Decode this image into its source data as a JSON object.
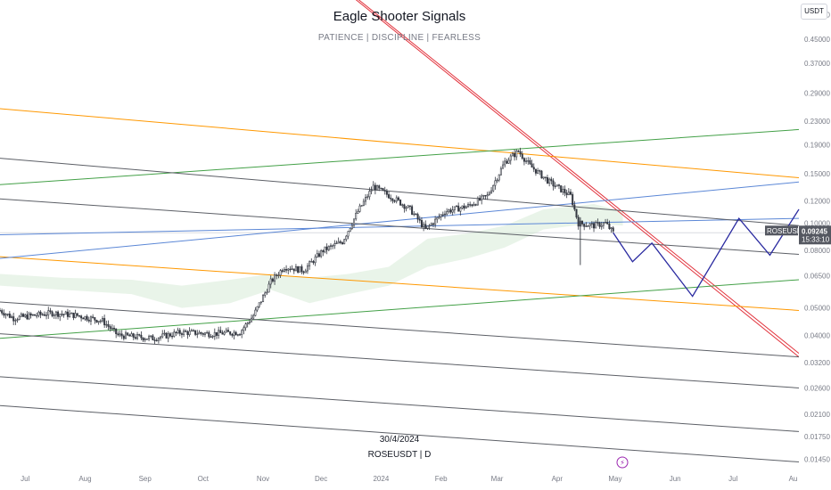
{
  "chart_data": {
    "type": "candlestick",
    "title": "Eagle Shooter Signals",
    "subtitle": "PATIENCE  |  DISCIPLINE  |  FEARLESS",
    "watermark_date": "30/4/2024",
    "watermark_symbol": "ROSEUSDT  |  D",
    "currency": "USDT",
    "symbol": "ROSEUSDT",
    "last_price": "0.09245",
    "countdown": "15:33:10",
    "y_scale": "log",
    "ylim": [
      0.0125,
      0.62
    ],
    "yticks": [
      "0.55000",
      "0.45000",
      "0.37000",
      "0.29000",
      "0.23000",
      "0.19000",
      "0.15000",
      "0.12000",
      "0.10000",
      "0.08000",
      "0.06500",
      "0.05000",
      "0.04000",
      "0.03200",
      "0.02600",
      "0.02100",
      "0.01750",
      "0.01450"
    ],
    "x_range": [
      "2023-06-18",
      "2024-08-04"
    ],
    "xticks": [
      {
        "label": "Jul",
        "date": "2023-07-01"
      },
      {
        "label": "Aug",
        "date": "2023-08-01"
      },
      {
        "label": "Sep",
        "date": "2023-09-01"
      },
      {
        "label": "Oct",
        "date": "2023-10-01"
      },
      {
        "label": "Nov",
        "date": "2023-11-01"
      },
      {
        "label": "Dec",
        "date": "2023-12-01"
      },
      {
        "label": "2024",
        "date": "2024-01-01"
      },
      {
        "label": "Feb",
        "date": "2024-02-01"
      },
      {
        "label": "Mar",
        "date": "2024-03-01"
      },
      {
        "label": "Apr",
        "date": "2024-04-01"
      },
      {
        "label": "May",
        "date": "2024-05-01"
      },
      {
        "label": "Jun",
        "date": "2024-06-01"
      },
      {
        "label": "Jul",
        "date": "2024-07-01"
      },
      {
        "label": "Au",
        "date": "2024-08-01"
      }
    ],
    "price_path": [
      {
        "date": "2023-06-18",
        "value": 0.049
      },
      {
        "date": "2023-06-25",
        "value": 0.046
      },
      {
        "date": "2023-07-05",
        "value": 0.047
      },
      {
        "date": "2023-07-15",
        "value": 0.048
      },
      {
        "date": "2023-07-28",
        "value": 0.047
      },
      {
        "date": "2023-08-10",
        "value": 0.045
      },
      {
        "date": "2023-08-18",
        "value": 0.04
      },
      {
        "date": "2023-09-05",
        "value": 0.039
      },
      {
        "date": "2023-09-20",
        "value": 0.041
      },
      {
        "date": "2023-10-05",
        "value": 0.0405
      },
      {
        "date": "2023-10-20",
        "value": 0.041
      },
      {
        "date": "2023-10-27",
        "value": 0.047
      },
      {
        "date": "2023-11-05",
        "value": 0.062
      },
      {
        "date": "2023-11-12",
        "value": 0.07
      },
      {
        "date": "2023-11-22",
        "value": 0.068
      },
      {
        "date": "2023-12-02",
        "value": 0.08
      },
      {
        "date": "2023-12-12",
        "value": 0.086
      },
      {
        "date": "2023-12-20",
        "value": 0.11
      },
      {
        "date": "2023-12-28",
        "value": 0.135
      },
      {
        "date": "2024-01-08",
        "value": 0.122
      },
      {
        "date": "2024-01-16",
        "value": 0.112
      },
      {
        "date": "2024-01-24",
        "value": 0.095
      },
      {
        "date": "2024-02-03",
        "value": 0.11
      },
      {
        "date": "2024-02-15",
        "value": 0.115
      },
      {
        "date": "2024-02-25",
        "value": 0.125
      },
      {
        "date": "2024-03-05",
        "value": 0.165
      },
      {
        "date": "2024-03-12",
        "value": 0.18
      },
      {
        "date": "2024-03-18",
        "value": 0.16
      },
      {
        "date": "2024-03-28",
        "value": 0.14
      },
      {
        "date": "2024-04-08",
        "value": 0.125
      },
      {
        "date": "2024-04-12",
        "value": 0.1
      },
      {
        "date": "2024-04-20",
        "value": 0.098
      },
      {
        "date": "2024-04-26",
        "value": 0.1
      },
      {
        "date": "2024-04-30",
        "value": 0.0925
      }
    ],
    "projection": [
      {
        "date": "2024-04-30",
        "value": 0.0925
      },
      {
        "date": "2024-05-10",
        "value": 0.073
      },
      {
        "date": "2024-05-20",
        "value": 0.085
      },
      {
        "date": "2024-06-10",
        "value": 0.055
      },
      {
        "date": "2024-07-04",
        "value": 0.104
      },
      {
        "date": "2024-07-20",
        "value": 0.077
      },
      {
        "date": "2024-08-04",
        "value": 0.112
      }
    ],
    "trend_lines": [
      {
        "color": "#e2333d",
        "points": [
          {
            "date": "2023-11-20",
            "value": 0.9
          },
          {
            "date": "2024-08-04",
            "value": 0.0335
          }
        ]
      },
      {
        "color": "#e2333d",
        "points": [
          {
            "date": "2023-11-23",
            "value": 0.88
          },
          {
            "date": "2024-08-04",
            "value": 0.0345
          }
        ]
      },
      {
        "color": "#ff9800",
        "points": [
          {
            "date": "2023-06-18",
            "value": 0.255
          },
          {
            "date": "2024-08-04",
            "value": 0.145
          }
        ]
      },
      {
        "color": "#ff9800",
        "points": [
          {
            "date": "2023-06-18",
            "value": 0.076
          },
          {
            "date": "2024-08-04",
            "value": 0.049
          }
        ]
      },
      {
        "color": "#43a047",
        "points": [
          {
            "date": "2023-06-18",
            "value": 0.137
          },
          {
            "date": "2024-08-04",
            "value": 0.215
          }
        ]
      },
      {
        "color": "#43a047",
        "points": [
          {
            "date": "2023-06-18",
            "value": 0.039
          },
          {
            "date": "2024-08-04",
            "value": 0.063
          }
        ]
      },
      {
        "color": "#5b87d6",
        "points": [
          {
            "date": "2023-06-18",
            "value": 0.075
          },
          {
            "date": "2024-08-04",
            "value": 0.14
          }
        ]
      },
      {
        "color": "#5b87d6",
        "points": [
          {
            "date": "2023-06-18",
            "value": 0.091
          },
          {
            "date": "2024-08-04",
            "value": 0.104
          }
        ]
      },
      {
        "color": "#5c5f66",
        "points": [
          {
            "date": "2023-06-18",
            "value": 0.17
          },
          {
            "date": "2024-08-04",
            "value": 0.098
          }
        ]
      },
      {
        "color": "#5c5f66",
        "points": [
          {
            "date": "2023-06-18",
            "value": 0.122
          },
          {
            "date": "2024-08-04",
            "value": 0.0775
          }
        ]
      },
      {
        "color": "#5c5f66",
        "points": [
          {
            "date": "2023-06-18",
            "value": 0.0525
          },
          {
            "date": "2024-08-04",
            "value": 0.0335
          }
        ]
      },
      {
        "color": "#5c5f66",
        "points": [
          {
            "date": "2023-06-18",
            "value": 0.0405
          },
          {
            "date": "2024-08-04",
            "value": 0.026
          }
        ]
      },
      {
        "color": "#5c5f66",
        "points": [
          {
            "date": "2023-06-18",
            "value": 0.0285
          },
          {
            "date": "2024-08-04",
            "value": 0.0182
          }
        ]
      },
      {
        "color": "#5c5f66",
        "points": [
          {
            "date": "2023-06-18",
            "value": 0.0225
          },
          {
            "date": "2024-08-04",
            "value": 0.0142
          }
        ]
      }
    ],
    "last_price_color": "#555861",
    "projection_color": "#2a2aa0"
  }
}
